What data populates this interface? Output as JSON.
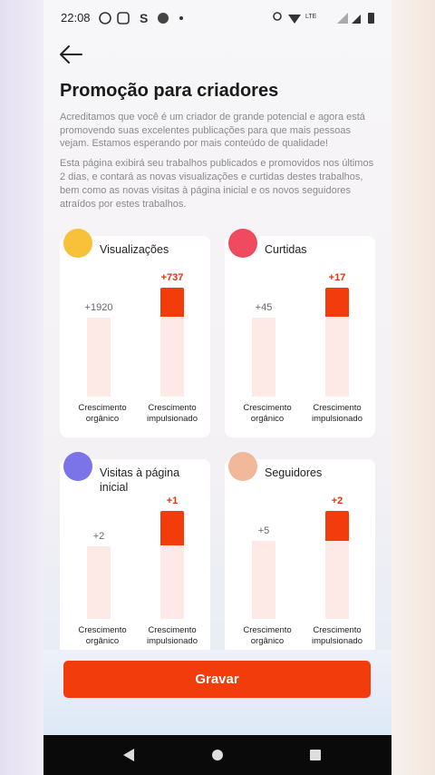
{
  "status_bar": {
    "time": "22:08",
    "network": "LTE"
  },
  "header": {
    "title": "Promoção para criadores"
  },
  "paragraphs": [
    "Acreditamos que você é um criador de grande potencial e agora está promovendo suas excelentes publicações para que mais pessoas vejam. Estamos esperando por mais conteúdo de qualidade!",
    "Esta página exibirá seu trabalhos publicados e promovidos nos últimos 2 dias, e contará as novas visualizações e curtidas destes trabalhos, bem como as novas visitas à página inicial e os novos seguidores atraídos por estes trabalhos."
  ],
  "cards": [
    {
      "title": "Visualizações",
      "organic": "+1920",
      "boosted": "+737",
      "organic_label": "Crescimento orgânico",
      "boosted_label": "Crescimento impulsionado"
    },
    {
      "title": "Curtidas",
      "organic": "+45",
      "boosted": "+17",
      "organic_label": "Crescimento orgânico",
      "boosted_label": "Crescimento impulsionado"
    },
    {
      "title": "Visitas à página inicial",
      "organic": "+2",
      "boosted": "+1",
      "organic_label": "Crescimento orgânico",
      "boosted_label": "Crescimento impulsionado"
    },
    {
      "title": "Seguidores",
      "organic": "+5",
      "boosted": "+2",
      "organic_label": "Crescimento orgânico",
      "boosted_label": "Crescimento impulsionado"
    }
  ],
  "button": "Gravar"
}
